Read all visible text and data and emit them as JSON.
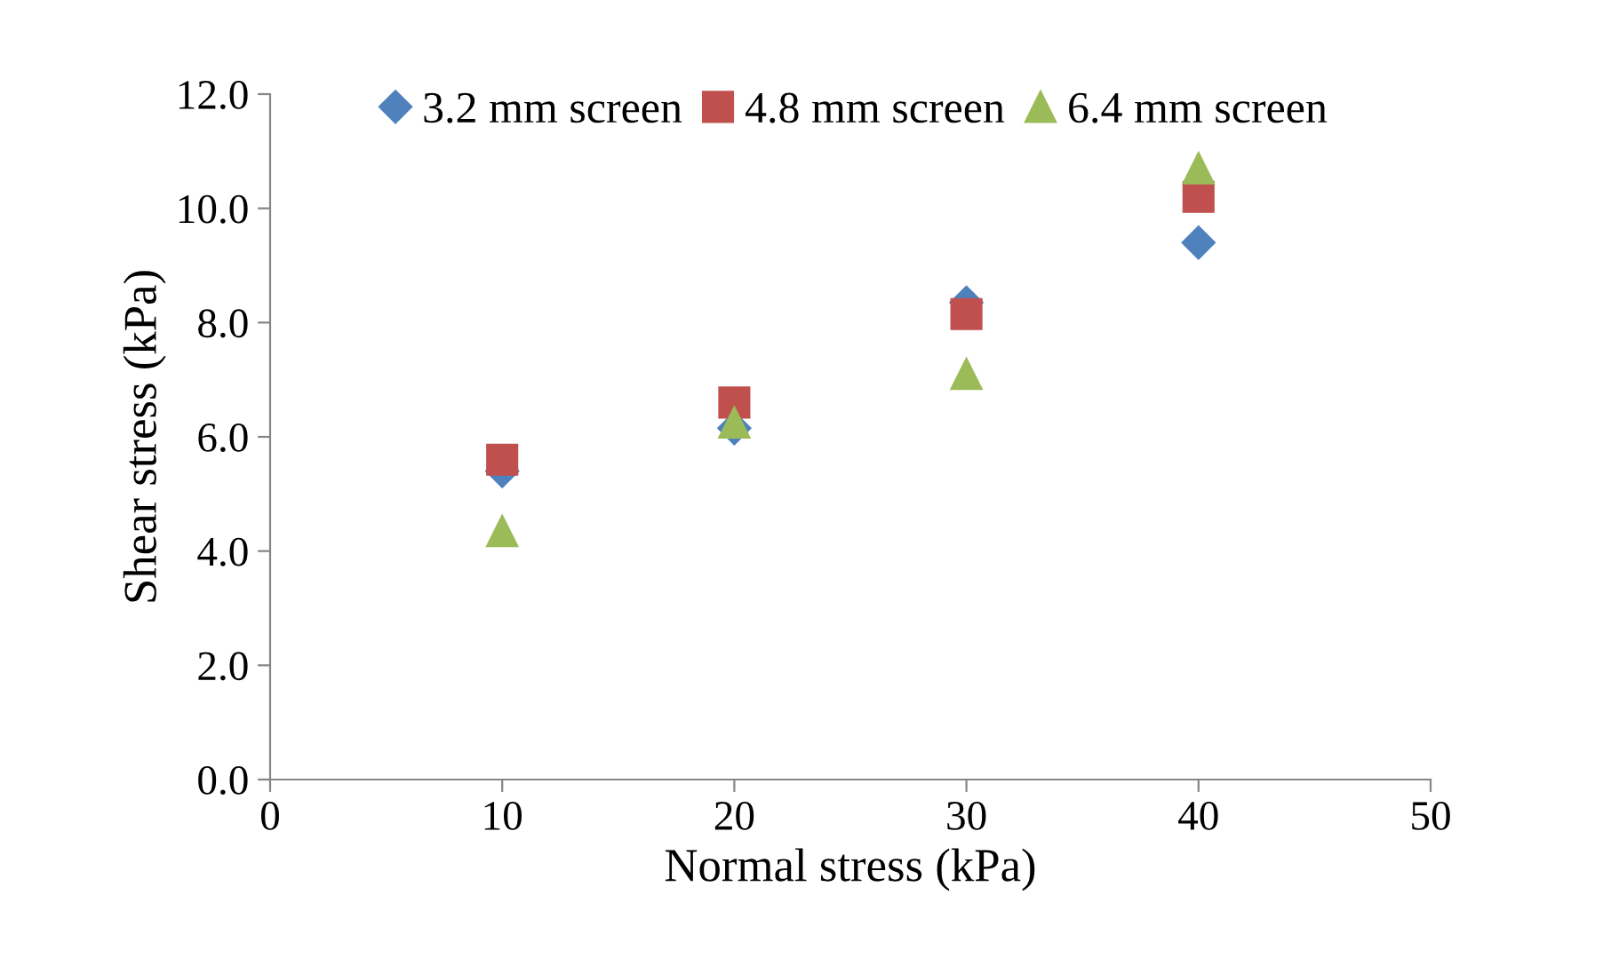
{
  "chart_data": {
    "type": "scatter",
    "xlabel": "Normal stress (kPa)",
    "ylabel": "Shear stress (kPa)",
    "x": [
      10,
      20,
      30,
      40
    ],
    "series": [
      {
        "name": "3.2 mm screen",
        "color": "#4f81bd",
        "marker": "diamond",
        "values": [
          5.4,
          6.15,
          8.35,
          9.4
        ]
      },
      {
        "name": "4.8 mm screen",
        "color": "#c0504d",
        "marker": "square",
        "values": [
          5.6,
          6.6,
          8.15,
          10.2
        ]
      },
      {
        "name": "6.4 mm screen",
        "color": "#9bbb59",
        "marker": "triangle",
        "values": [
          4.35,
          6.25,
          7.1,
          10.7
        ]
      }
    ],
    "xlim": [
      0,
      50
    ],
    "xticks": [
      0,
      10,
      20,
      30,
      40,
      50
    ],
    "ylim": [
      0,
      12
    ],
    "yticks": [
      {
        "value": 0,
        "label": "0.0"
      },
      {
        "value": 2,
        "label": "2.0"
      },
      {
        "value": 4,
        "label": "4.0"
      },
      {
        "value": 6,
        "label": "6.0"
      },
      {
        "value": 8,
        "label": "8.0"
      },
      {
        "value": 10,
        "label": "10.0"
      },
      {
        "value": 12,
        "label": "12.0"
      }
    ],
    "grid": false,
    "legend": "top"
  }
}
